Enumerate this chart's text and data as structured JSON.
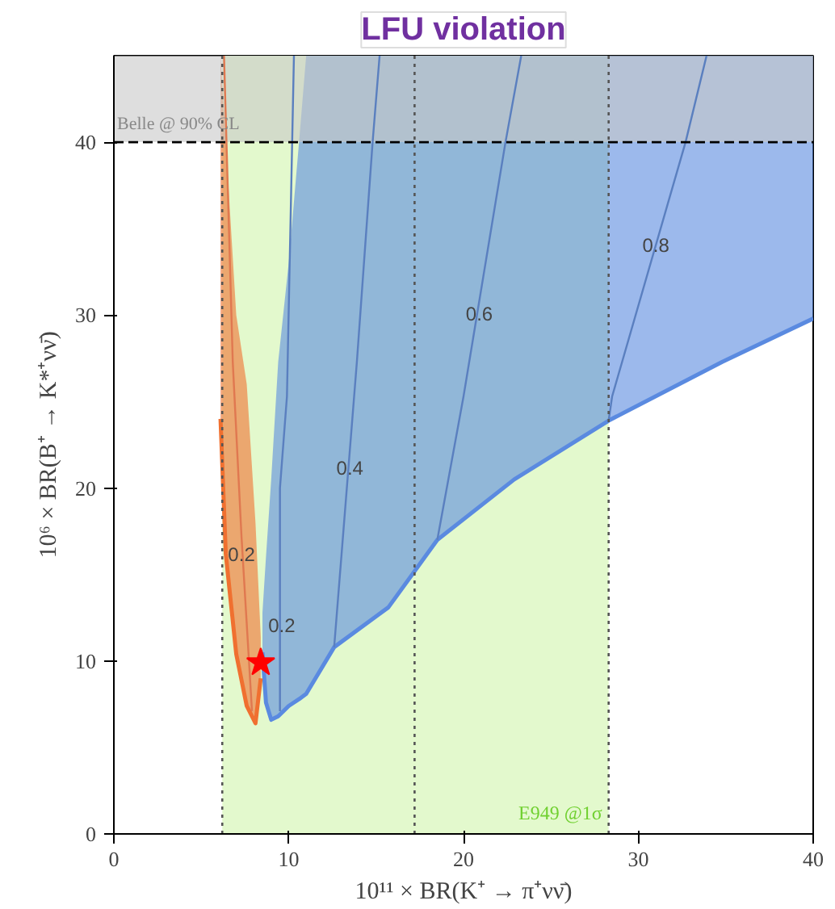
{
  "chart_data": {
    "type": "line",
    "title": "LFU violation",
    "xlabel": "10¹¹ × BR(K⁺ → π⁺νν̄)",
    "ylabel": "10⁶ × BR(B⁺ → K*⁺νν̄)",
    "xlim": [
      0,
      40
    ],
    "ylim": [
      0,
      45
    ],
    "xticks": [
      0,
      10,
      20,
      30,
      40
    ],
    "yticks": [
      0,
      10,
      20,
      30,
      40
    ],
    "grid": false,
    "series": [
      {
        "color": "#5a8ae0",
        "x": [
          8.5,
          8.7,
          9.0,
          9.4,
          10.0,
          10.6,
          11.0,
          12.6,
          15.7,
          18.5,
          22.9,
          28.3,
          34.8,
          40
        ],
        "values": [
          10.5,
          7.6,
          6.6,
          6.8,
          7.4,
          7.8,
          8.1,
          10.8,
          13.1,
          17.0,
          20.5,
          23.9,
          27.3,
          29.8
        ],
        "lower": [
          10.5,
          7.6,
          6.6,
          6.8,
          7.4,
          7.8,
          8.1,
          10.8,
          13.1,
          17.0,
          20.5,
          23.9,
          27.3,
          29.8
        ],
        "upper": [
          12.8,
          16,
          20.5,
          27.3,
          33,
          40.1,
          45,
          45,
          45,
          45,
          45,
          45,
          45,
          45
        ]
      },
      {
        "color": "#f07030",
        "x": [
          6.1,
          6.4,
          7.0,
          7.6,
          8.1,
          8.4
        ],
        "values": [
          24,
          16.2,
          10.4,
          7.4,
          6.4,
          9
        ],
        "lower": [
          24,
          16.2,
          10.4,
          7.4,
          6.4,
          9
        ],
        "upper": [
          45,
          40,
          30,
          26,
          18,
          11.4
        ]
      },
      {
        "type": "line",
        "color": "#e07850",
        "x": [
          7.9,
          7.3,
          6.8,
          6.3
        ],
        "values": [
          7.1,
          17.2,
          27.3,
          45
        ]
      },
      {
        "type": "line",
        "color": "#5a7fbf",
        "x": [
          9.5,
          9.5,
          9.9,
          10.3
        ],
        "values": [
          7.1,
          20,
          25.3,
          45
        ]
      },
      {
        "type": "line",
        "color": "#5a7fbf",
        "x": [
          12.6,
          13.9,
          14.8,
          15.2
        ],
        "values": [
          10.8,
          27.3,
          40,
          45
        ]
      },
      {
        "type": "line",
        "color": "#5a7fbf",
        "x": [
          18.5,
          20.0,
          22.4,
          23.3
        ],
        "values": [
          17.0,
          25.3,
          40,
          45
        ]
      },
      {
        "type": "line",
        "color": "#5a7fbf",
        "x": [
          28.3,
          28.5,
          32.7,
          33.9
        ],
        "values": [
          23.9,
          25.3,
          40,
          45
        ]
      },
      {
        "type": "scatter",
        "marker": "star",
        "color": "#ff0000",
        "x": [
          8.4
        ],
        "values": [
          9.9
        ]
      }
    ],
    "bands": [
      {
        "axis": "x",
        "from": 6.2,
        "to": 28.3,
        "label": "E949 @1σ",
        "color": "#e0f8c8"
      },
      {
        "axis": "y",
        "from": 40,
        "to": 45,
        "label": "Belle @ 90% CL",
        "color": "#c8c8c8"
      }
    ],
    "ref_lines": [
      {
        "axis": "y",
        "value": 40,
        "line_style": "dashed",
        "color": "#000000"
      },
      {
        "axis": "x",
        "value": 6.2,
        "line_style": "dotted",
        "color": "#555555"
      },
      {
        "axis": "x",
        "value": 17.2,
        "line_style": "dotted",
        "color": "#555555"
      },
      {
        "axis": "x",
        "value": 28.3,
        "line_style": "dotted",
        "color": "#555555"
      }
    ],
    "annotations": [
      {
        "text": "0.2",
        "x": 7.3,
        "y": 16.2
      },
      {
        "text": "0.2",
        "x": 9.6,
        "y": 12.1
      },
      {
        "text": "0.4",
        "x": 13.5,
        "y": 21.2
      },
      {
        "text": "0.6",
        "x": 20.9,
        "y": 30.1
      },
      {
        "text": "0.8",
        "x": 31.0,
        "y": 34.1
      }
    ]
  }
}
